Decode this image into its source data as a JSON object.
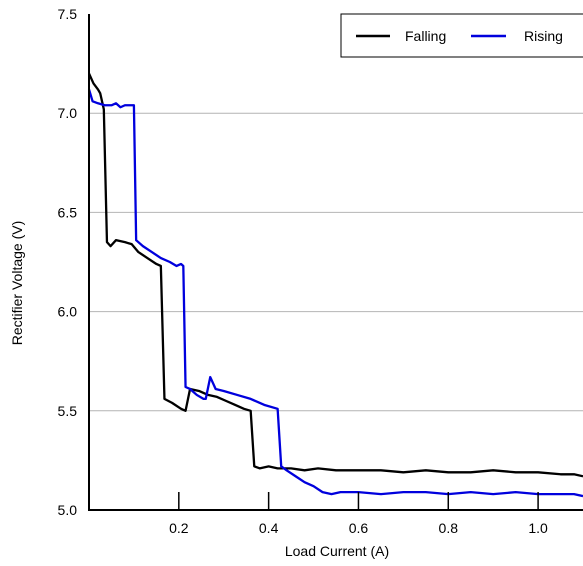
{
  "chart_data": {
    "type": "line",
    "title": "",
    "xlabel": "Load Current (A)",
    "ylabel": "Rectifier Voltage (V)",
    "xlim": [
      0.0,
      1.1
    ],
    "ylim": [
      5.0,
      7.5
    ],
    "x_ticks": [
      0.2,
      0.4,
      0.6,
      0.8,
      1.0
    ],
    "x_tick_labels": [
      "0.2",
      "0.4",
      "0.6",
      "0.8",
      "1.0"
    ],
    "y_ticks": [
      5.0,
      5.5,
      6.0,
      6.5,
      7.0,
      7.5
    ],
    "y_tick_labels": [
      "5.0",
      "5.5",
      "6.0",
      "6.5",
      "7.0",
      "7.5"
    ],
    "grid": "horizontal",
    "legend_position": "top-right",
    "series": [
      {
        "name": "Falling",
        "color": "#000000",
        "points": [
          [
            0.0,
            7.2
          ],
          [
            0.01,
            7.15
          ],
          [
            0.02,
            7.12
          ],
          [
            0.025,
            7.1
          ],
          [
            0.033,
            7.02
          ],
          [
            0.04,
            6.35
          ],
          [
            0.048,
            6.33
          ],
          [
            0.06,
            6.36
          ],
          [
            0.08,
            6.35
          ],
          [
            0.095,
            6.34
          ],
          [
            0.11,
            6.3
          ],
          [
            0.13,
            6.27
          ],
          [
            0.15,
            6.24
          ],
          [
            0.16,
            6.23
          ],
          [
            0.168,
            5.56
          ],
          [
            0.185,
            5.54
          ],
          [
            0.205,
            5.51
          ],
          [
            0.215,
            5.5
          ],
          [
            0.225,
            5.61
          ],
          [
            0.245,
            5.6
          ],
          [
            0.265,
            5.58
          ],
          [
            0.285,
            5.57
          ],
          [
            0.305,
            5.55
          ],
          [
            0.325,
            5.53
          ],
          [
            0.345,
            5.51
          ],
          [
            0.36,
            5.5
          ],
          [
            0.368,
            5.22
          ],
          [
            0.38,
            5.21
          ],
          [
            0.4,
            5.22
          ],
          [
            0.42,
            5.21
          ],
          [
            0.45,
            5.21
          ],
          [
            0.48,
            5.2
          ],
          [
            0.51,
            5.21
          ],
          [
            0.55,
            5.2
          ],
          [
            0.6,
            5.2
          ],
          [
            0.65,
            5.2
          ],
          [
            0.7,
            5.19
          ],
          [
            0.75,
            5.2
          ],
          [
            0.8,
            5.19
          ],
          [
            0.85,
            5.19
          ],
          [
            0.9,
            5.2
          ],
          [
            0.95,
            5.19
          ],
          [
            1.0,
            5.19
          ],
          [
            1.05,
            5.18
          ],
          [
            1.08,
            5.18
          ],
          [
            1.1,
            5.17
          ]
        ]
      },
      {
        "name": "Rising",
        "color": "#0000dd",
        "points": [
          [
            0.0,
            7.12
          ],
          [
            0.008,
            7.06
          ],
          [
            0.02,
            7.05
          ],
          [
            0.035,
            7.04
          ],
          [
            0.05,
            7.04
          ],
          [
            0.06,
            7.05
          ],
          [
            0.07,
            7.03
          ],
          [
            0.08,
            7.04
          ],
          [
            0.09,
            7.04
          ],
          [
            0.1,
            7.04
          ],
          [
            0.105,
            6.36
          ],
          [
            0.12,
            6.33
          ],
          [
            0.14,
            6.3
          ],
          [
            0.16,
            6.27
          ],
          [
            0.18,
            6.25
          ],
          [
            0.195,
            6.23
          ],
          [
            0.205,
            6.24
          ],
          [
            0.21,
            6.23
          ],
          [
            0.215,
            5.62
          ],
          [
            0.225,
            5.61
          ],
          [
            0.24,
            5.58
          ],
          [
            0.255,
            5.56
          ],
          [
            0.26,
            5.56
          ],
          [
            0.27,
            5.67
          ],
          [
            0.282,
            5.61
          ],
          [
            0.3,
            5.6
          ],
          [
            0.33,
            5.58
          ],
          [
            0.36,
            5.56
          ],
          [
            0.39,
            5.53
          ],
          [
            0.42,
            5.51
          ],
          [
            0.428,
            5.22
          ],
          [
            0.44,
            5.2
          ],
          [
            0.46,
            5.17
          ],
          [
            0.48,
            5.14
          ],
          [
            0.5,
            5.12
          ],
          [
            0.52,
            5.09
          ],
          [
            0.54,
            5.08
          ],
          [
            0.56,
            5.09
          ],
          [
            0.6,
            5.09
          ],
          [
            0.65,
            5.08
          ],
          [
            0.7,
            5.09
          ],
          [
            0.75,
            5.09
          ],
          [
            0.8,
            5.08
          ],
          [
            0.85,
            5.09
          ],
          [
            0.9,
            5.08
          ],
          [
            0.95,
            5.09
          ],
          [
            1.0,
            5.08
          ],
          [
            1.05,
            5.08
          ],
          [
            1.08,
            5.08
          ],
          [
            1.1,
            5.07
          ]
        ]
      }
    ]
  }
}
